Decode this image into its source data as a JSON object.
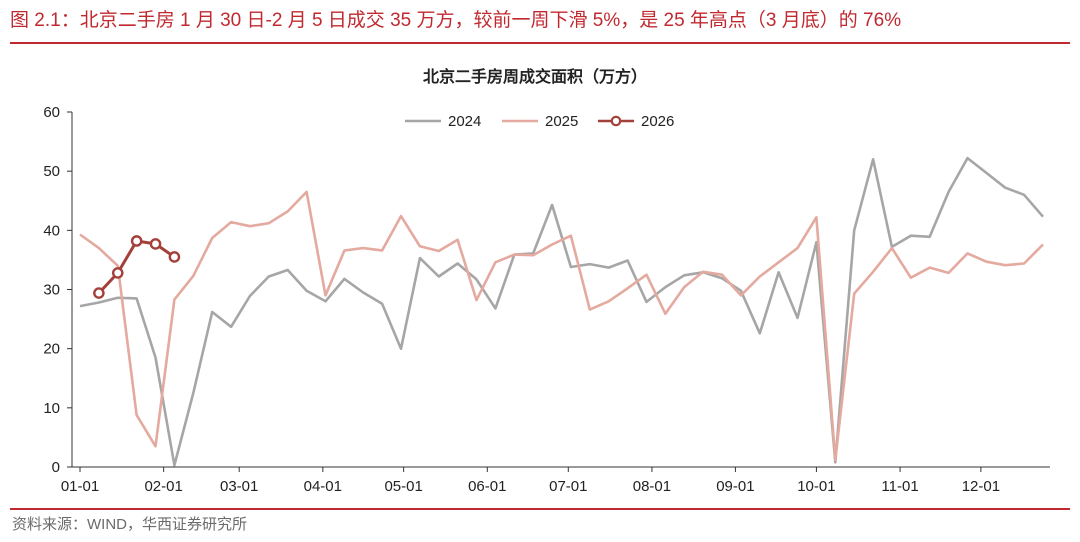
{
  "figure": {
    "title": "图 2.1：北京二手房 1 月 30 日-2 月 5 日成交 35 万方，较前一周下滑 5%，是 25 年高点（3 月底）的 76%",
    "source": "资料来源：WIND，华西证券研究所",
    "accent_color": "#c0292f"
  },
  "chart_data": {
    "type": "line",
    "title": "北京二手房周成交面积（万方）",
    "xlabel": "",
    "ylabel": "",
    "ylim": [
      0,
      60
    ],
    "yticks": [
      0,
      10,
      20,
      30,
      40,
      50,
      60
    ],
    "x_unit": "week",
    "x_tick_labels": [
      "01-01",
      "02-01",
      "03-01",
      "04-01",
      "05-01",
      "06-01",
      "07-01",
      "08-01",
      "09-01",
      "10-01",
      "11-01",
      "12-01"
    ],
    "x_tick_weeks": [
      0,
      4.43,
      8.43,
      12.86,
      17.14,
      21.57,
      25.86,
      30.29,
      34.71,
      39.0,
      43.43,
      47.71
    ],
    "grid": false,
    "legend_position": "top-center",
    "series": [
      {
        "name": "2024",
        "color": "#a6a6a6",
        "markers": false,
        "x": [
          0,
          1,
          2,
          3,
          4,
          5,
          6,
          7,
          8,
          9,
          10,
          11,
          12,
          13,
          14,
          15,
          16,
          17,
          18,
          19,
          20,
          21,
          22,
          23,
          24,
          25,
          26,
          27,
          28,
          29,
          30,
          31,
          32,
          33,
          34,
          35,
          36,
          37,
          38,
          39,
          40,
          41,
          42,
          43,
          44,
          45,
          46,
          47,
          48,
          49,
          50,
          51
        ],
        "values": [
          27.2,
          27.8,
          28.6,
          28.5,
          18.5,
          0.3,
          12.5,
          26.2,
          23.7,
          28.9,
          32.2,
          33.3,
          29.8,
          28.0,
          31.8,
          29.5,
          27.6,
          20.0,
          35.3,
          32.2,
          34.4,
          31.7,
          26.8,
          35.9,
          36.1,
          44.3,
          33.8,
          34.3,
          33.7,
          34.9,
          27.9,
          30.4,
          32.4,
          32.9,
          31.9,
          29.8,
          22.6,
          32.9,
          25.2,
          38.0,
          0.8,
          40.0,
          52.0,
          37.2,
          39.1,
          38.9,
          46.5,
          52.2,
          49.7,
          47.2,
          46.0,
          42.3
        ]
      },
      {
        "name": "2025",
        "color": "#e4a99f",
        "markers": false,
        "x": [
          0,
          1,
          2,
          3,
          4,
          5,
          6,
          7,
          8,
          9,
          10,
          11,
          12,
          13,
          14,
          15,
          16,
          17,
          18,
          19,
          20,
          21,
          22,
          23,
          24,
          25,
          26,
          27,
          28,
          29,
          30,
          31,
          32,
          33,
          34,
          35,
          36,
          37,
          38,
          39,
          40,
          41,
          42,
          43,
          44,
          45,
          46,
          47,
          48,
          49,
          50,
          51
        ],
        "values": [
          39.3,
          37.0,
          34.0,
          8.8,
          3.5,
          28.3,
          32.3,
          38.7,
          41.4,
          40.7,
          41.2,
          43.2,
          46.5,
          29.0,
          36.6,
          37.0,
          36.6,
          42.4,
          37.3,
          36.5,
          38.4,
          28.2,
          34.6,
          35.9,
          35.8,
          37.6,
          39.1,
          26.6,
          28.0,
          30.2,
          32.5,
          25.9,
          30.4,
          33.0,
          32.5,
          29.0,
          32.2,
          34.6,
          37.0,
          42.2,
          1.2,
          29.3,
          33.0,
          37.0,
          32.0,
          33.7,
          32.8,
          36.1,
          34.7,
          34.1,
          34.4,
          37.6
        ]
      },
      {
        "name": "2026",
        "color": "#a34039",
        "markers": true,
        "x": [
          1,
          2,
          3,
          4,
          5
        ],
        "values": [
          29.4,
          32.8,
          38.2,
          37.7,
          35.5
        ]
      }
    ]
  }
}
